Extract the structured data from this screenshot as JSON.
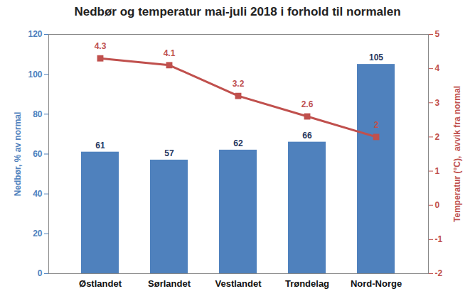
{
  "chart_data": {
    "type": "bar",
    "title": "Nedbør og temperatur mai-juli 2018 i forhold til normalen",
    "categories": [
      "Østlandet",
      "Sørlandet",
      "Vestlandet",
      "Trøndelag",
      "Nord-Norge"
    ],
    "ylabel": "Nedbør, % av normal",
    "y2label": "Temperatur (°C),  avvik fra normal",
    "series": [
      {
        "type": "bar",
        "color": "#4f81bd",
        "values": [
          61,
          57,
          62,
          66,
          105
        ]
      },
      {
        "type": "line",
        "axis": "y2",
        "color": "#c0504d",
        "marker": "square",
        "values": [
          4.3,
          4.1,
          3.2,
          2.6,
          2
        ]
      }
    ],
    "ylim": [
      0,
      120
    ],
    "yticks": [
      0,
      20,
      40,
      60,
      80,
      100,
      120
    ],
    "y2lim": [
      -2,
      5
    ],
    "y2ticks": [
      -2,
      -1,
      0,
      1,
      2,
      3,
      4,
      5
    ],
    "data_labels": true,
    "grid": false
  }
}
